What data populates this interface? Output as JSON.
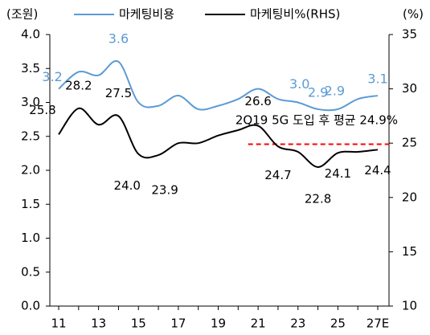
{
  "chart_data": {
    "type": "line",
    "y_label": "(조원)",
    "y2_label": "(%)",
    "categories": [
      "11",
      null,
      "13",
      null,
      "15",
      null,
      "17",
      null,
      "19",
      null,
      "21",
      null,
      "23",
      null,
      "25",
      null,
      "27E"
    ],
    "series": [
      {
        "name": "마케팅비용",
        "color": "#5b9bd5",
        "axis": "y",
        "values": [
          3.2,
          3.45,
          3.4,
          3.6,
          3.0,
          2.95,
          3.1,
          2.9,
          2.95,
          3.05,
          3.2,
          3.05,
          3.0,
          2.9,
          2.9,
          3.05,
          3.1
        ],
        "value_labels": [
          "3.2",
          null,
          null,
          "3.6",
          null,
          null,
          null,
          null,
          null,
          null,
          null,
          null,
          "3.0",
          "2.9",
          "2.9",
          null,
          "3.1"
        ]
      },
      {
        "name": "마케팅비%(RHS)",
        "color": "#000000",
        "axis": "y2",
        "values": [
          25.8,
          28.2,
          26.7,
          27.5,
          24.0,
          23.9,
          25.0,
          25.0,
          25.7,
          26.2,
          26.6,
          24.7,
          24.2,
          22.8,
          24.1,
          24.2,
          24.4
        ],
        "value_labels": [
          "25.8",
          "28.2",
          null,
          "27.5",
          "24.0",
          "23.9",
          null,
          null,
          null,
          null,
          "26.6",
          "24.7",
          null,
          "22.8",
          "24.1",
          null,
          "24.4"
        ]
      }
    ],
    "reference": {
      "value": 24.9,
      "color": "#ff0000",
      "axis": "y2",
      "annotation": "2Q19  5G 도입 후 평균 24.9%"
    },
    "ylim": [
      0,
      4
    ],
    "yticks": [
      {
        "value": 0,
        "label": "0.0"
      },
      {
        "value": 0.5,
        "label": "0.5"
      },
      {
        "value": 1,
        "label": "1.0"
      },
      {
        "value": 1.5,
        "label": "1.5"
      },
      {
        "value": 2,
        "label": "2.0"
      },
      {
        "value": 2.5,
        "label": "2.5"
      },
      {
        "value": 3,
        "label": "3.0"
      },
      {
        "value": 3.5,
        "label": "3.5"
      },
      {
        "value": 4,
        "label": "4.0"
      }
    ],
    "y2lim": [
      10,
      35
    ],
    "y2ticks": [
      10,
      15,
      20,
      25,
      30,
      35
    ],
    "grid": false
  }
}
